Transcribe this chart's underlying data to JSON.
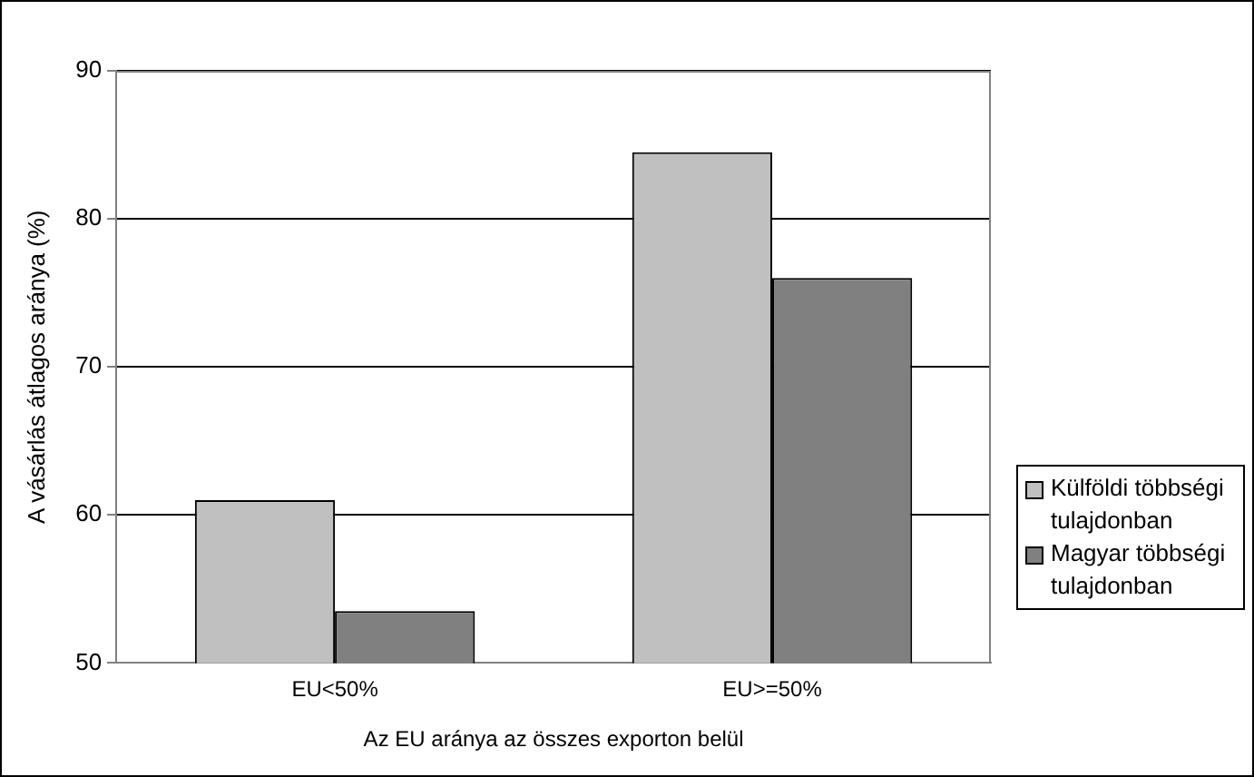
{
  "chart_data": {
    "type": "bar",
    "xlabel": "Az EU aránya az összes exporton belül",
    "ylabel": "A vásárlás átlagos aránya (%)",
    "categories": [
      "EU<50%",
      "EU>=50%"
    ],
    "series": [
      {
        "name": "Külföldi többségi tulajdonban",
        "color": "#c0c0c0",
        "values": [
          61,
          84.5
        ]
      },
      {
        "name": "Magyar többségi tulajdonban",
        "color": "#808080",
        "values": [
          53.5,
          76
        ]
      }
    ],
    "ylim": [
      50,
      90
    ],
    "yticks": [
      50,
      60,
      70,
      80,
      90
    ],
    "grid": "y",
    "legend": "right"
  }
}
